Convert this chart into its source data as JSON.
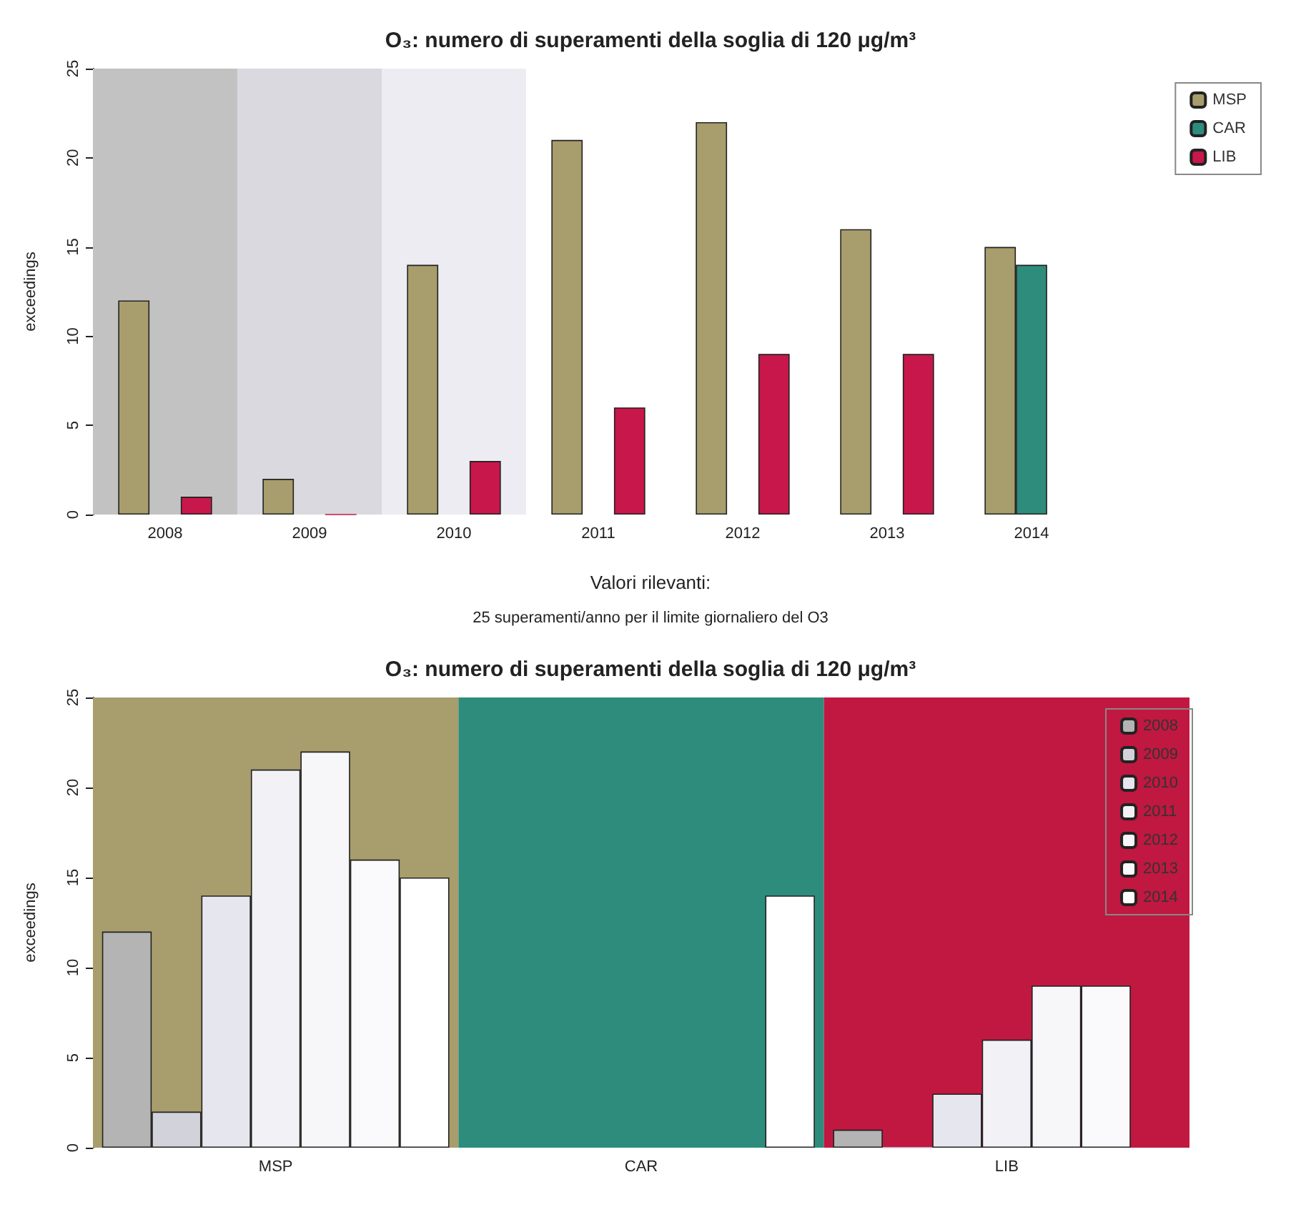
{
  "chart_data": [
    {
      "type": "bar",
      "title": "O₃: numero di superamenti della soglia di 120 μg/m³",
      "ylabel": "exceedings",
      "categories": [
        "2008",
        "2009",
        "2010",
        "2011",
        "2012",
        "2013",
        "2014"
      ],
      "series": [
        {
          "name": "MSP",
          "color": "#a89d6c",
          "values": [
            12,
            2,
            14,
            21,
            22,
            16,
            15
          ]
        },
        {
          "name": "CAR",
          "color": "#2e8c7c",
          "values": [
            null,
            null,
            null,
            null,
            null,
            null,
            14
          ]
        },
        {
          "name": "LIB",
          "color": "#c8174a",
          "values": [
            1,
            0,
            3,
            6,
            9,
            9,
            null
          ]
        }
      ],
      "ylim": [
        0,
        25
      ],
      "yticks": [
        0,
        5,
        10,
        15,
        20,
        25
      ],
      "grid": false,
      "legend": "top right",
      "bands": [
        {
          "axis": "x",
          "from": "2008",
          "to": "2008",
          "color": "#c2c2c2"
        },
        {
          "axis": "x",
          "from": "2009",
          "to": "2009",
          "color": "#d9d9df"
        },
        {
          "axis": "x",
          "from": "2010",
          "to": "2010",
          "color": "#ececf2"
        }
      ],
      "annotations": [
        "Valori rilevanti:",
        "25 superamenti/anno per il limite giornaliero del O3"
      ]
    },
    {
      "type": "bar",
      "title": "O₃: numero di superamenti della soglia di 120 μg/m³",
      "ylabel": "exceedings",
      "categories": [
        "MSP",
        "CAR",
        "LIB"
      ],
      "series": [
        {
          "name": "2008",
          "color": "#b4b4b4",
          "values": [
            12,
            null,
            1
          ]
        },
        {
          "name": "2009",
          "color": "#d2d2da",
          "values": [
            2,
            null,
            0
          ]
        },
        {
          "name": "2010",
          "color": "#e6e6ee",
          "values": [
            14,
            null,
            3
          ]
        },
        {
          "name": "2011",
          "color": "#f2f2f6",
          "values": [
            21,
            null,
            6
          ]
        },
        {
          "name": "2012",
          "color": "#f7f7fa",
          "values": [
            22,
            null,
            9
          ]
        },
        {
          "name": "2013",
          "color": "#fafafc",
          "values": [
            16,
            null,
            9
          ]
        },
        {
          "name": "2014",
          "color": "#ffffff",
          "values": [
            15,
            14,
            null
          ]
        }
      ],
      "ylim": [
        0,
        25
      ],
      "yticks": [
        0,
        5,
        10,
        15,
        20,
        25
      ],
      "grid": false,
      "legend": "top right",
      "bands": [
        {
          "axis": "x",
          "from": "MSP",
          "to": "MSP",
          "color": "#a89d6c"
        },
        {
          "axis": "x",
          "from": "CAR",
          "to": "CAR",
          "color": "#2e8c7c"
        },
        {
          "axis": "x",
          "from": "LIB",
          "to": "LIB",
          "color": "#c01840"
        }
      ]
    }
  ]
}
